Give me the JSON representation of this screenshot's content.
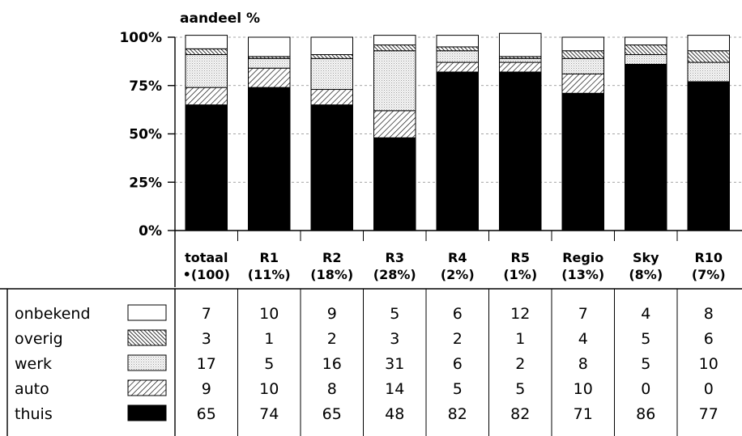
{
  "chart_data": {
    "type": "bar",
    "stacked": true,
    "ylabel": "aandeel %",
    "ylim": [
      0,
      100
    ],
    "yticks": [
      "0%",
      "25%",
      "50%",
      "75%",
      "100%"
    ],
    "grid": true,
    "categories": [
      {
        "name": "totaal",
        "sub": "•(100)"
      },
      {
        "name": "R1",
        "sub": "(11%)"
      },
      {
        "name": "R2",
        "sub": "(18%)"
      },
      {
        "name": "R3",
        "sub": "(28%)"
      },
      {
        "name": "R4",
        "sub": "(2%)"
      },
      {
        "name": "R5",
        "sub": "(1%)"
      },
      {
        "name": "Regio",
        "sub": "(13%)"
      },
      {
        "name": "Sky",
        "sub": "(8%)"
      },
      {
        "name": "R10",
        "sub": "(7%)"
      }
    ],
    "series": [
      {
        "name": "onbekend",
        "pattern": "white",
        "values": [
          7,
          10,
          9,
          5,
          6,
          12,
          7,
          4,
          8
        ]
      },
      {
        "name": "overig",
        "pattern": "dark-hatch",
        "values": [
          3,
          1,
          2,
          3,
          2,
          1,
          4,
          5,
          6
        ]
      },
      {
        "name": "werk",
        "pattern": "dots",
        "values": [
          17,
          5,
          16,
          31,
          6,
          2,
          8,
          5,
          10
        ]
      },
      {
        "name": "auto",
        "pattern": "light-hatch",
        "values": [
          9,
          10,
          8,
          14,
          5,
          5,
          10,
          0,
          0
        ]
      },
      {
        "name": "thuis",
        "pattern": "black",
        "values": [
          65,
          74,
          65,
          48,
          82,
          82,
          71,
          86,
          77
        ]
      }
    ],
    "stack_order_bottom_to_top": [
      "thuis",
      "auto",
      "werk",
      "overig",
      "onbekend"
    ]
  }
}
